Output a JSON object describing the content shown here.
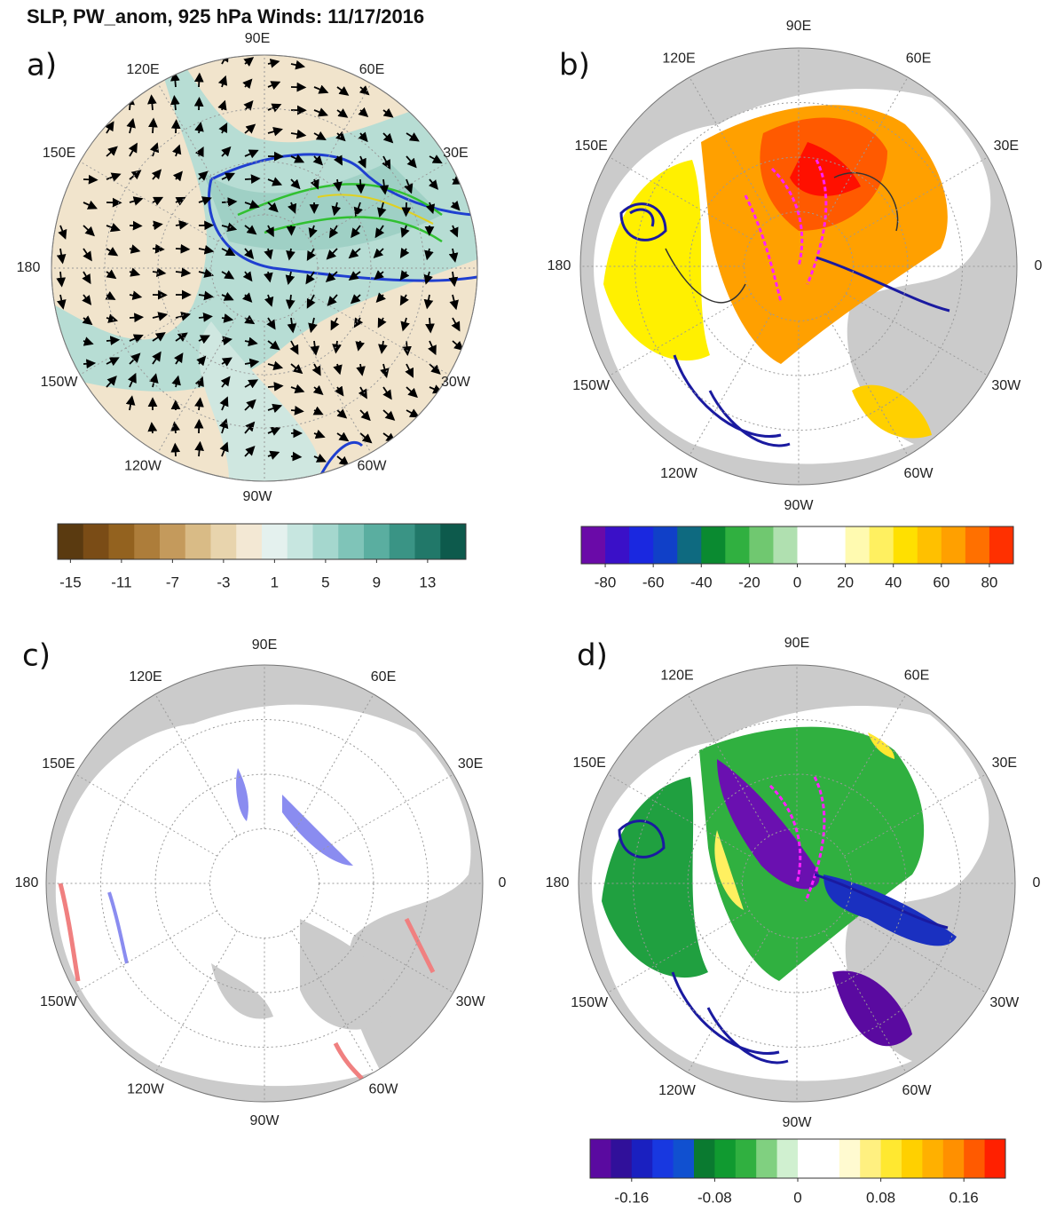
{
  "title": "SLP, PW_anom, 925 hPa Winds: 11/17/2016",
  "panels": [
    {
      "label": "a)",
      "lon_labels": [
        {
          "value": 90,
          "label": "90E"
        },
        {
          "value": 60,
          "label": "60E"
        },
        {
          "value": 30,
          "label": "30E"
        },
        {
          "value": -30,
          "label": "30W"
        },
        {
          "value": -60,
          "label": "60W"
        },
        {
          "value": -90,
          "label": "90W"
        },
        {
          "value": -120,
          "label": "120W"
        },
        {
          "value": -150,
          "label": "150W"
        },
        {
          "value": 180,
          "label": "180"
        },
        {
          "value": 150,
          "label": "150E"
        },
        {
          "value": 120,
          "label": "120E"
        }
      ],
      "colorbar": {
        "range": [
          -16,
          16
        ],
        "ticks": [
          -15,
          -11,
          -7,
          -3,
          1,
          5,
          9,
          13
        ],
        "colors": [
          "#5a3a10",
          "#7a4c16",
          "#93621f",
          "#ad7d3a",
          "#c49a5c",
          "#d9bb86",
          "#e8d4ad",
          "#f3e8d4",
          "#e4f1ee",
          "#c7e6e0",
          "#a5d7ce",
          "#7fc4b8",
          "#5aaea0",
          "#3a9485",
          "#217869",
          "#0d5a4c"
        ]
      }
    },
    {
      "label": "b)",
      "lon_labels": [
        {
          "value": 90,
          "label": "90E"
        },
        {
          "value": 60,
          "label": "60E"
        },
        {
          "value": 30,
          "label": "30E"
        },
        {
          "value": 0,
          "label": "0"
        },
        {
          "value": -30,
          "label": "30W"
        },
        {
          "value": -60,
          "label": "60W"
        },
        {
          "value": -90,
          "label": "90W"
        },
        {
          "value": -120,
          "label": "120W"
        },
        {
          "value": -150,
          "label": "150W"
        },
        {
          "value": 180,
          "label": "180"
        },
        {
          "value": 150,
          "label": "150E"
        },
        {
          "value": 120,
          "label": "120E"
        }
      ],
      "colorbar": {
        "range": [
          -90,
          90
        ],
        "ticks": [
          -80,
          -60,
          -40,
          -20,
          0,
          20,
          40,
          60,
          80
        ],
        "colors": [
          "#6a0aa8",
          "#3a10c8",
          "#1a28e0",
          "#1040c8",
          "#0e6a80",
          "#0a8a30",
          "#30b040",
          "#70c870",
          "#b0e0b0",
          "#ffffff",
          "#ffffff",
          "#fffab0",
          "#fff060",
          "#ffe000",
          "#ffc000",
          "#ffa000",
          "#ff7000",
          "#ff3000"
        ]
      }
    },
    {
      "label": "c)",
      "lon_labels": [
        {
          "value": 90,
          "label": "90E"
        },
        {
          "value": 60,
          "label": "60E"
        },
        {
          "value": 30,
          "label": "30E"
        },
        {
          "value": 0,
          "label": "0"
        },
        {
          "value": -30,
          "label": "30W"
        },
        {
          "value": -60,
          "label": "60W"
        },
        {
          "value": -90,
          "label": "90W"
        },
        {
          "value": -120,
          "label": "120W"
        },
        {
          "value": -150,
          "label": "150W"
        },
        {
          "value": 180,
          "label": "180"
        },
        {
          "value": 150,
          "label": "150E"
        },
        {
          "value": 120,
          "label": "120E"
        }
      ]
    },
    {
      "label": "d)",
      "lon_labels": [
        {
          "value": 90,
          "label": "90E"
        },
        {
          "value": 60,
          "label": "60E"
        },
        {
          "value": 30,
          "label": "30E"
        },
        {
          "value": 0,
          "label": "0"
        },
        {
          "value": -30,
          "label": "30W"
        },
        {
          "value": -60,
          "label": "60W"
        },
        {
          "value": -90,
          "label": "90W"
        },
        {
          "value": -120,
          "label": "120W"
        },
        {
          "value": -150,
          "label": "150W"
        },
        {
          "value": 180,
          "label": "180"
        },
        {
          "value": 150,
          "label": "150E"
        },
        {
          "value": 120,
          "label": "120E"
        }
      ],
      "colorbar": {
        "range": [
          -0.2,
          0.2
        ],
        "ticks": [
          -0.16,
          -0.08,
          0,
          0.08,
          0.16
        ],
        "colors": [
          "#5a0aa0",
          "#30109a",
          "#1a20c0",
          "#1838e0",
          "#1050d0",
          "#0a7a30",
          "#109a30",
          "#30b040",
          "#80d080",
          "#d0f0d0",
          "#ffffff",
          "#ffffff",
          "#fffad0",
          "#fff080",
          "#ffe830",
          "#ffd000",
          "#ffb000",
          "#ff9000",
          "#ff5a00",
          "#ff2000"
        ]
      }
    }
  ]
}
